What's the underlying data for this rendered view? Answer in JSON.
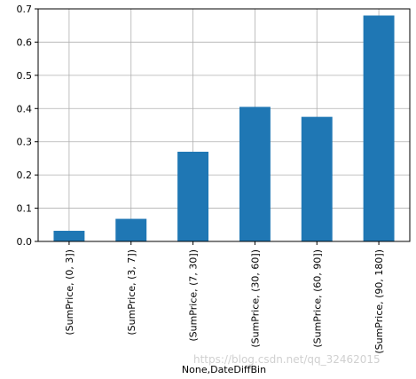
{
  "chart_data": {
    "type": "bar",
    "categories": [
      "(SumPrice, (0, 3])",
      "(SumPrice, (3, 7])",
      "(SumPrice, (7, 30])",
      "(SumPrice, (30, 60])",
      "(SumPrice, (60, 90])",
      "(SumPrice, (90, 180])"
    ],
    "values": [
      0.032,
      0.068,
      0.27,
      0.405,
      0.375,
      0.68
    ],
    "title": "",
    "xlabel": "None,DateDiffBin",
    "ylabel": "",
    "ylim": [
      0,
      0.7
    ],
    "yticks": [
      "0.0",
      "0.1",
      "0.2",
      "0.3",
      "0.4",
      "0.5",
      "0.6",
      "0.7"
    ],
    "grid": true,
    "bar_color": "#1f77b4",
    "grid_color": "#b0b0b0"
  },
  "watermark": "https://blog.csdn.net/qq_32462015"
}
